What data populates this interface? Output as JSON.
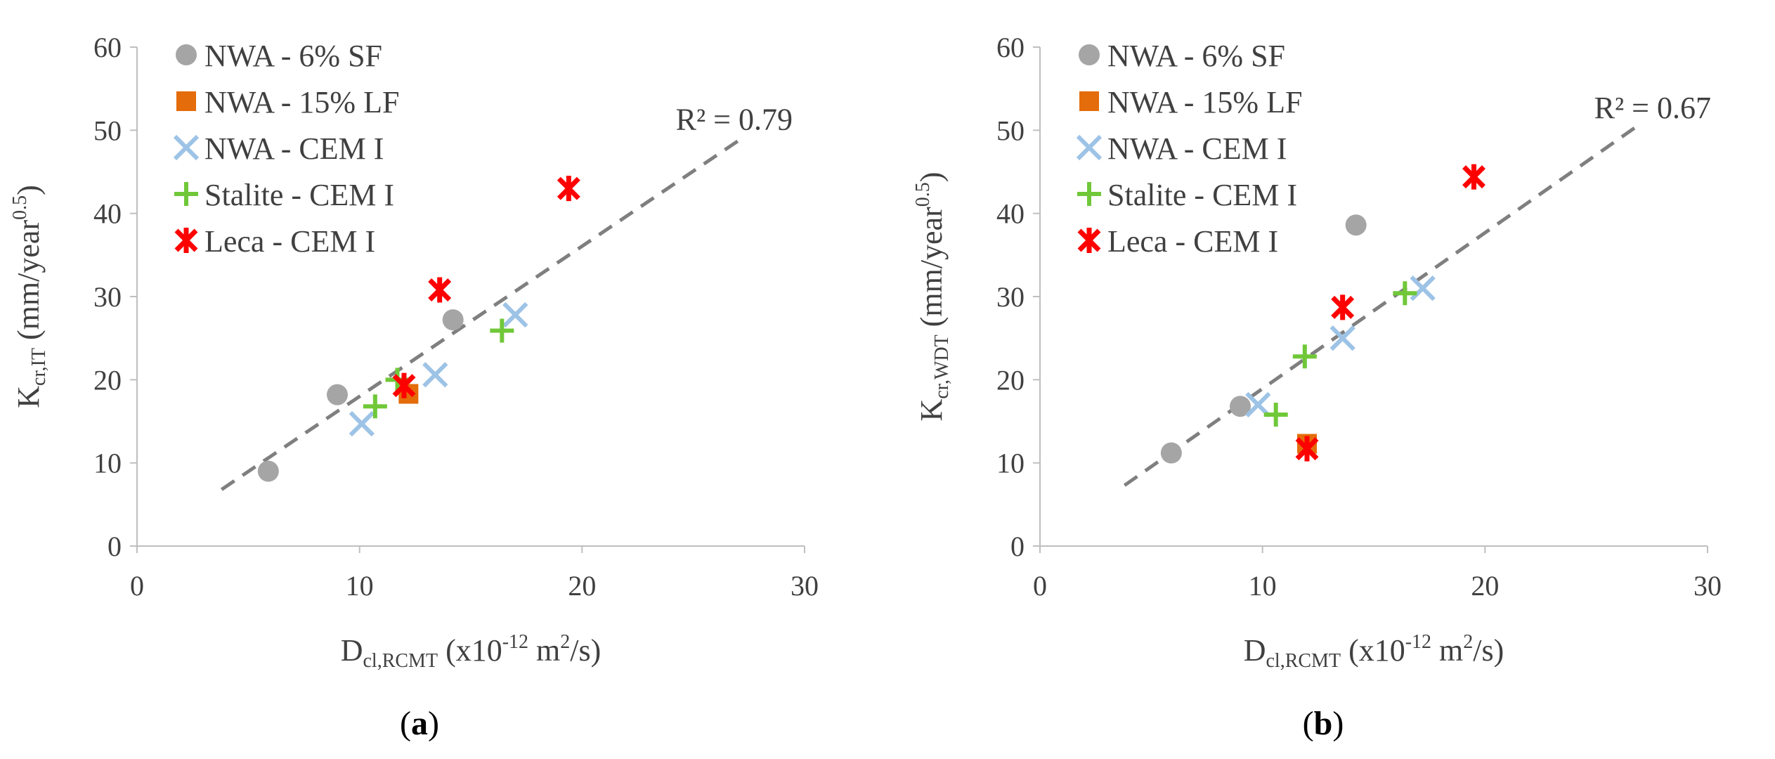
{
  "colors": {
    "sf": "#A5A5A5",
    "lf": "#E46C0A",
    "cem": "#9DC3E6",
    "stalite": "#70C839",
    "leca": "#FF0000",
    "trend": "#7F7F7F",
    "axis": "#BFBFBF"
  },
  "chart_data": [
    {
      "type": "scatter",
      "panel_label": "a",
      "x_label": {
        "main": "D",
        "sub": "cl,RCMT",
        "pre_exp": " (x10",
        "exp": "-12",
        "mid": " m",
        "exp2": "2",
        "post": "/s)"
      },
      "y_label": {
        "main": "K",
        "sub": "cr,IT",
        "pre_exp": " (mm/year",
        "exp": "0.5",
        "post": ")"
      },
      "xlim": [
        0,
        30
      ],
      "ylim": [
        0,
        60
      ],
      "xticks": [
        "0",
        "10",
        "20",
        "30"
      ],
      "yticks": [
        "0",
        "10",
        "20",
        "30",
        "40",
        "50",
        "60"
      ],
      "r2_label": "R² = 0.79",
      "trendline": {
        "x": [
          3.8,
          27
        ],
        "y": [
          6.8,
          48.7
        ]
      },
      "series": [
        {
          "name": "NWA - 6% SF",
          "marker": "circle",
          "color": "#A5A5A5",
          "x": [
            5.9,
            9.0,
            14.2
          ],
          "y": [
            9.0,
            18.2,
            27.2
          ]
        },
        {
          "name": "NWA - 15% LF",
          "marker": "square",
          "color": "#E46C0A",
          "x": [
            12.2
          ],
          "y": [
            18.3
          ]
        },
        {
          "name": "NWA - CEM I",
          "marker": "x",
          "color": "#9DC3E6",
          "x": [
            10.1,
            13.4,
            17.0
          ],
          "y": [
            14.7,
            20.6,
            27.8
          ]
        },
        {
          "name": "Stalite - CEM I",
          "marker": "plus",
          "color": "#70C839",
          "x": [
            10.7,
            11.7,
            16.4
          ],
          "y": [
            16.8,
            20.0,
            25.9
          ]
        },
        {
          "name": "Leca - CEM I",
          "marker": "star",
          "color": "#FF0000",
          "x": [
            12.0,
            13.6,
            19.4
          ],
          "y": [
            19.3,
            30.8,
            43.0
          ]
        }
      ]
    },
    {
      "type": "scatter",
      "panel_label": "b",
      "x_label": {
        "main": "D",
        "sub": "cl,RCMT",
        "pre_exp": " (x10",
        "exp": "-12",
        "mid": " m",
        "exp2": "2",
        "post": "/s)"
      },
      "y_label": {
        "main": "K",
        "sub": "cr,WDT",
        "pre_exp": " (mm/year",
        "exp": "0.5",
        "post": ")"
      },
      "xlim": [
        0,
        30
      ],
      "ylim": [
        0,
        60
      ],
      "xticks": [
        "0",
        "10",
        "20",
        "30"
      ],
      "yticks": [
        "0",
        "10",
        "20",
        "30",
        "40",
        "50",
        "60"
      ],
      "r2_label": "R² = 0.67",
      "trendline": {
        "x": [
          3.8,
          27
        ],
        "y": [
          7.3,
          50.8
        ]
      },
      "series": [
        {
          "name": "NWA - 6% SF",
          "marker": "circle",
          "color": "#A5A5A5",
          "x": [
            5.9,
            9.0,
            14.2
          ],
          "y": [
            11.2,
            16.8,
            38.6
          ]
        },
        {
          "name": "NWA - 15% LF",
          "marker": "square",
          "color": "#E46C0A",
          "x": [
            12.0
          ],
          "y": [
            12.3
          ]
        },
        {
          "name": "NWA - CEM I",
          "marker": "x",
          "color": "#9DC3E6",
          "x": [
            9.8,
            13.6,
            17.2
          ],
          "y": [
            17.0,
            25.0,
            31.0
          ]
        },
        {
          "name": "Stalite - CEM I",
          "marker": "plus",
          "color": "#70C839",
          "x": [
            10.6,
            11.9,
            16.4
          ],
          "y": [
            15.8,
            22.8,
            30.4
          ]
        },
        {
          "name": "Leca - CEM I",
          "marker": "star",
          "color": "#FF0000",
          "x": [
            12.0,
            13.6,
            19.5
          ],
          "y": [
            11.7,
            28.7,
            44.4
          ]
        }
      ]
    }
  ]
}
